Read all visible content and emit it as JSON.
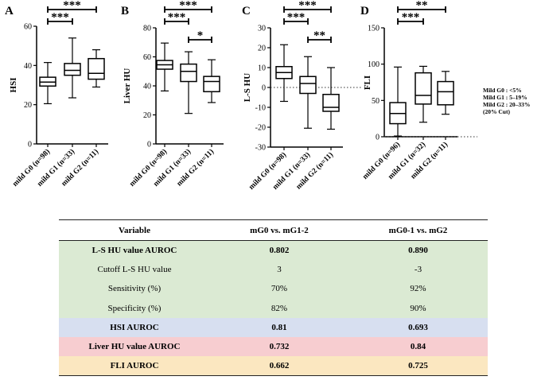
{
  "chart_data": [
    {
      "type": "box",
      "panel_label": "A",
      "ylabel": "HSI",
      "ylim": [
        0,
        60
      ],
      "yticks": [
        0,
        20,
        40,
        60
      ],
      "reference_line": null,
      "categories": [
        "mild G0 (n=98)",
        "mild G1 (n=33)",
        "mild G2 (n=11)"
      ],
      "boxes": [
        {
          "min": 20.5,
          "q1": 29.5,
          "median": 31.5,
          "q3": 34,
          "max": 41.5
        },
        {
          "min": 23.5,
          "q1": 35,
          "median": 37.5,
          "q3": 41,
          "max": 54
        },
        {
          "min": 29,
          "q1": 33,
          "median": 36,
          "q3": 43.5,
          "max": 48
        }
      ],
      "brackets": [
        {
          "from": 0,
          "to": 1,
          "label": "***",
          "level": 0
        },
        {
          "from": 0,
          "to": 2,
          "label": "***",
          "level": 1
        }
      ]
    },
    {
      "type": "box",
      "panel_label": "B",
      "ylabel": "Liver HU",
      "ylim": [
        0,
        80
      ],
      "yticks": [
        0,
        20,
        40,
        60,
        80
      ],
      "reference_line": null,
      "categories": [
        "mild G0 (n=98)",
        "mild G1 (n=33)",
        "mild G2 (n=11)"
      ],
      "boxes": [
        {
          "min": 36.5,
          "q1": 51.5,
          "median": 54.5,
          "q3": 57.5,
          "max": 69.5
        },
        {
          "min": 21,
          "q1": 43,
          "median": 50,
          "q3": 55,
          "max": 63.5
        },
        {
          "min": 28.5,
          "q1": 36,
          "median": 43,
          "q3": 46.5,
          "max": 58
        }
      ],
      "brackets": [
        {
          "from": 0,
          "to": 1,
          "label": "***",
          "level": 0
        },
        {
          "from": 1,
          "to": 2,
          "label": "*",
          "level": -1
        },
        {
          "from": 0,
          "to": 2,
          "label": "***",
          "level": 1
        }
      ]
    },
    {
      "type": "box",
      "panel_label": "C",
      "ylabel": "L-S HU",
      "ylim": [
        -30,
        30
      ],
      "yticks": [
        -30,
        -20,
        -10,
        0,
        10,
        20,
        30
      ],
      "reference_line": 0,
      "categories": [
        "mild G0 (n=98)",
        "mild G1 (n=33)",
        "mild G2 (n=11)"
      ],
      "boxes": [
        {
          "min": -7,
          "q1": 4.5,
          "median": 7.5,
          "q3": 10.5,
          "max": 21.5
        },
        {
          "min": -20.5,
          "q1": -3,
          "median": 2,
          "q3": 5.5,
          "max": 15.5
        },
        {
          "min": -21,
          "q1": -12,
          "median": -10,
          "q3": -3.5,
          "max": 10
        }
      ],
      "brackets": [
        {
          "from": 0,
          "to": 1,
          "label": "***",
          "level": 0
        },
        {
          "from": 1,
          "to": 2,
          "label": "**",
          "level": -1
        },
        {
          "from": 0,
          "to": 2,
          "label": "***",
          "level": 1
        }
      ]
    },
    {
      "type": "box",
      "panel_label": "D",
      "ylabel": "FLI",
      "ylim": [
        0,
        150
      ],
      "yticks": [
        0,
        50,
        100,
        150
      ],
      "reference_line": 0,
      "categories": [
        "mild G0 (n=96)",
        "mild G1 (n=32)",
        "mild G2 (n=11)"
      ],
      "boxes": [
        {
          "min": 1,
          "q1": 18,
          "median": 32,
          "q3": 47,
          "max": 96
        },
        {
          "min": 20,
          "q1": 45,
          "median": 57,
          "q3": 88,
          "max": 97
        },
        {
          "min": 31,
          "q1": 44,
          "median": 62,
          "q3": 76,
          "max": 90
        }
      ],
      "brackets": [
        {
          "from": 0,
          "to": 1,
          "label": "***",
          "level": 0
        },
        {
          "from": 0,
          "to": 2,
          "label": "**",
          "level": 1
        }
      ]
    }
  ],
  "legend": {
    "line1": "Mild G0 : <5%",
    "line2": "Mild G1 : 5–19%",
    "line3": "Mild G2 : 20–33%",
    "line4": "(20% Cut)"
  },
  "table": {
    "headers": [
      "Variable",
      "mG0 vs. mG1-2",
      "mG0-1 vs. mG2"
    ],
    "rows": [
      {
        "variable": "L-S HU value AUROC",
        "col1": "0.802",
        "col2": "0.890"
      },
      {
        "variable": "Cutoff L-S HU value",
        "col1": "3",
        "col2": "-3"
      },
      {
        "variable": "Sensitivity (%)",
        "col1": "70%",
        "col2": "92%"
      },
      {
        "variable": "Specificity (%)",
        "col1": "82%",
        "col2": "90%"
      },
      {
        "variable": "HSI AUROC",
        "col1": "0.81",
        "col2": "0.693"
      },
      {
        "variable": "Liver HU value AUROC",
        "col1": "0.732",
        "col2": "0.84"
      },
      {
        "variable": "FLI AUROC",
        "col1": "0.662",
        "col2": "0.725"
      }
    ]
  }
}
